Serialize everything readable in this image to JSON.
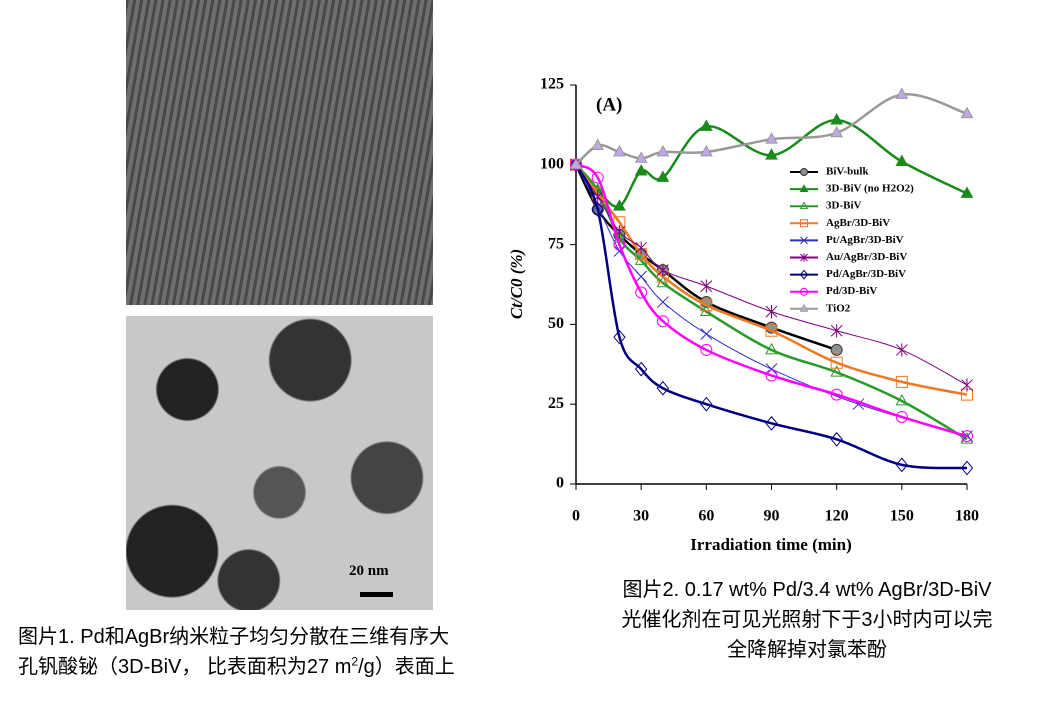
{
  "images": {
    "scale_label": "20 nm"
  },
  "captions": {
    "left": [
      "图片1. Pd和AgBr纳米粒子均匀分散在三维有序大",
      [
        "孔钒酸铋（3D-BiV， 比表面积为27 m",
        "2",
        "/g）表面上"
      ]
    ],
    "right": [
      "图片2. 0.17 wt% Pd/3.4 wt% AgBr/3D-BiV",
      "光催化剂在可见光照射下于3小时内可以完",
      "全降解掉对氯苯酚"
    ]
  },
  "chart_data": {
    "type": "line",
    "annotation": "(A)",
    "x_label": "Irradiation time (min)",
    "y_label": "Ct/C0 (%)",
    "xlim": [
      0,
      180
    ],
    "xticks": [
      0,
      30,
      60,
      90,
      120,
      150,
      180
    ],
    "ylim": [
      0,
      125
    ],
    "yticks": [
      0,
      25,
      50,
      75,
      100,
      125
    ],
    "series": [
      {
        "name": "BiV-bulk",
        "color": "#000000",
        "marker": "circle",
        "marker_fill": "#909090",
        "x": [
          0,
          10,
          20,
          30,
          40,
          60,
          90,
          120
        ],
        "values": [
          100,
          86,
          78,
          72,
          67,
          57,
          49,
          42
        ]
      },
      {
        "name": "3D-BiV (no H2O2)",
        "color": "#1a8a1a",
        "marker": "triangle",
        "marker_fill": "#1a8a1a",
        "x": [
          0,
          10,
          20,
          30,
          40,
          60,
          90,
          120,
          150,
          180
        ],
        "values": [
          100,
          92,
          87,
          98,
          96,
          112,
          103,
          114,
          101,
          91
        ]
      },
      {
        "name": "3D-BiV",
        "color": "#2a9a2a",
        "marker": "triangle",
        "marker_fill": "none",
        "x": [
          0,
          10,
          20,
          30,
          40,
          60,
          90,
          120,
          150,
          180
        ],
        "values": [
          100,
          92,
          77,
          70,
          63,
          54,
          42,
          35,
          26,
          14
        ]
      },
      {
        "name": "AgBr/3D-BiV",
        "color": "#f07820",
        "marker": "square",
        "marker_fill": "none",
        "x": [
          0,
          10,
          20,
          30,
          40,
          60,
          90,
          120,
          150,
          180
        ],
        "values": [
          100,
          91,
          82,
          72,
          65,
          56,
          48,
          38,
          32,
          28
        ]
      },
      {
        "name": "Pt/AgBr/3D-BiV",
        "color": "#3030d0",
        "marker": "x",
        "marker_fill": "none",
        "x": [
          0,
          10,
          20,
          30,
          40,
          60,
          90,
          130,
          180
        ],
        "values": [
          100,
          87,
          73,
          65,
          57,
          47,
          36,
          25,
          15
        ]
      },
      {
        "name": "Au/AgBr/3D-BiV",
        "color": "#800080",
        "marker": "asterisk",
        "marker_fill": "none",
        "x": [
          0,
          10,
          20,
          30,
          40,
          60,
          90,
          120,
          150,
          180
        ],
        "values": [
          100,
          90,
          79,
          74,
          67,
          62,
          54,
          48,
          42,
          31
        ]
      },
      {
        "name": "Pd/AgBr/3D-BiV",
        "color": "#000080",
        "marker": "diamond",
        "marker_fill": "none",
        "x": [
          0,
          10,
          20,
          30,
          40,
          60,
          90,
          120,
          150,
          180
        ],
        "values": [
          100,
          86,
          46,
          36,
          30,
          25,
          19,
          14,
          6,
          5
        ]
      },
      {
        "name": "Pd/3D-BiV",
        "color": "#ff00ff",
        "marker": "circle",
        "marker_fill": "none",
        "x": [
          0,
          10,
          20,
          30,
          40,
          60,
          90,
          120,
          150,
          180
        ],
        "values": [
          100,
          96,
          75,
          60,
          51,
          42,
          34,
          28,
          21,
          15
        ]
      },
      {
        "name": "TiO2",
        "color": "#999999",
        "marker": "triangle",
        "marker_fill": "#c0a8e8",
        "x": [
          0,
          10,
          20,
          30,
          40,
          60,
          90,
          120,
          150,
          180
        ],
        "values": [
          100,
          106,
          104,
          102,
          104,
          104,
          108,
          110,
          122,
          116
        ]
      }
    ]
  }
}
